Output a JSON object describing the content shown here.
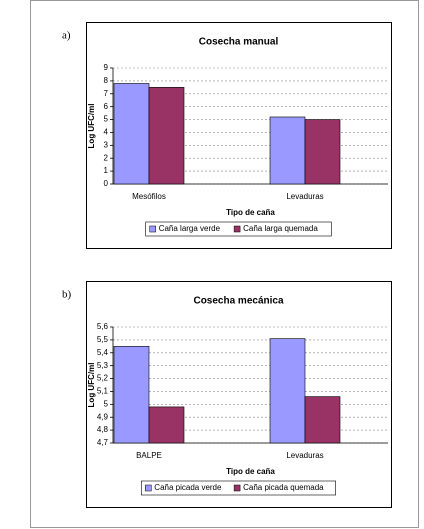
{
  "chart_data": [
    {
      "type": "bar",
      "label": "a)",
      "title": "Cosecha manual",
      "categories": [
        "Mesófilos",
        "Levaduras"
      ],
      "series": [
        {
          "name": "Caña larga verde",
          "color": "#9999ff",
          "values": [
            7.8,
            5.2
          ]
        },
        {
          "name": "Caña larga quemada",
          "color": "#993366",
          "values": [
            7.5,
            5.0
          ]
        }
      ],
      "xlabel": "Tipo de caña",
      "ylabel": "Log UFC/ml",
      "ylim": [
        0,
        9
      ],
      "yticks": [
        0,
        1,
        2,
        3,
        4,
        5,
        6,
        7,
        8,
        9
      ],
      "grid": true,
      "legend": "bottom"
    },
    {
      "type": "bar",
      "label": "b)",
      "title": "Cosecha mecánica",
      "categories": [
        "BALPE",
        "Levaduras"
      ],
      "series": [
        {
          "name": "Caña picada verde",
          "color": "#9999ff",
          "values": [
            5.45,
            5.51
          ]
        },
        {
          "name": "Caña picada quemada",
          "color": "#993366",
          "values": [
            4.98,
            5.06
          ]
        }
      ],
      "xlabel": "Tipo de caña",
      "ylabel": "Log UFC/ml",
      "ylim": [
        4.7,
        5.6
      ],
      "yticks": [
        {
          "value": 4.7,
          "label": "4,7"
        },
        {
          "value": 4.8,
          "label": "4,8"
        },
        {
          "value": 4.9,
          "label": "4,9"
        },
        5,
        {
          "value": 5.1,
          "label": "5,1"
        },
        {
          "value": 5.2,
          "label": "5,2"
        },
        {
          "value": 5.3,
          "label": "5,3"
        },
        {
          "value": 5.4,
          "label": "5,4"
        },
        {
          "value": 5.5,
          "label": "5,5"
        },
        {
          "value": 5.6,
          "label": "5,6"
        }
      ],
      "grid": true,
      "legend": "bottom"
    }
  ]
}
